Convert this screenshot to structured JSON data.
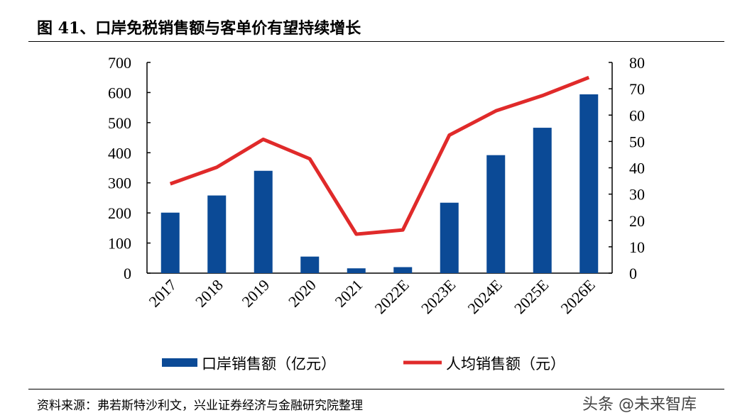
{
  "title": "图 41、口岸免税销售额与客单价有望持续增长",
  "source": "资料来源：弗若斯特沙利文，兴业证券经济与金融研究院整理",
  "watermark": "头条 @未来智库",
  "chart_data": {
    "type": "bar+line",
    "categories": [
      "2017",
      "2018",
      "2019",
      "2020",
      "2021",
      "2022E",
      "2023E",
      "2024E",
      "2025E",
      "2026E"
    ],
    "series": [
      {
        "name": "口岸销售额（亿元）",
        "type": "bar",
        "axis": "left",
        "color": "#0b4a96",
        "values": [
          201,
          258,
          340,
          55,
          16,
          20,
          234,
          392,
          483,
          594
        ]
      },
      {
        "name": "人均销售额（元）",
        "type": "line",
        "axis": "right",
        "color": "#e02a2a",
        "values": [
          33.9,
          40.2,
          50.8,
          43.4,
          14.8,
          16.4,
          52.4,
          61.6,
          67.4,
          74.3
        ]
      }
    ],
    "ylim_left": [
      0,
      700
    ],
    "yticks_left": [
      0,
      100,
      200,
      300,
      400,
      500,
      600,
      700
    ],
    "ylim_right": [
      0,
      80
    ],
    "yticks_right": [
      0,
      10,
      20,
      30,
      40,
      50,
      60,
      70,
      80
    ],
    "grid": false,
    "legend": "bottom"
  }
}
